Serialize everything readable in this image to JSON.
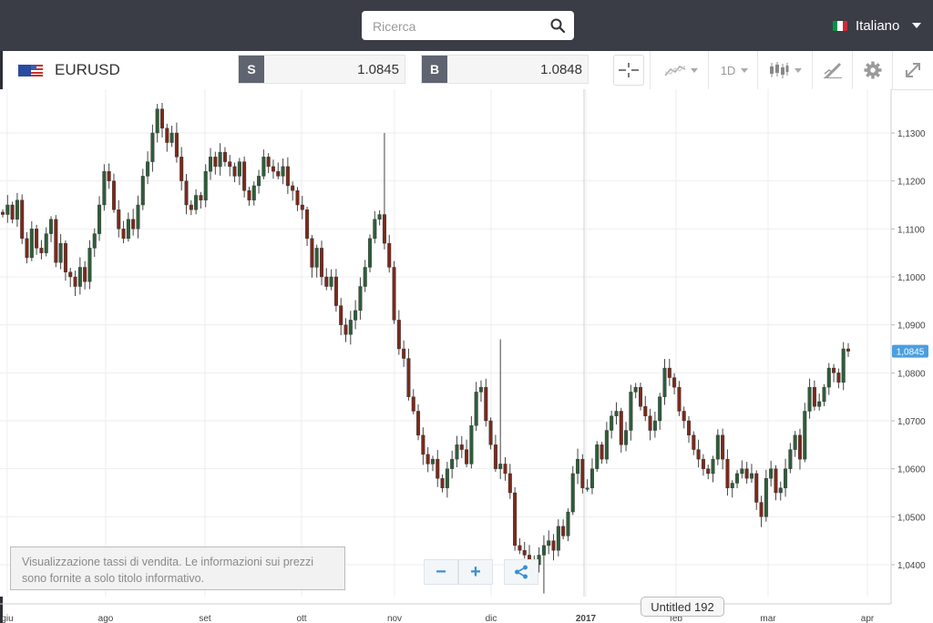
{
  "header": {
    "search_placeholder": "Ricerca",
    "language": "Italiano",
    "language_flag_colors": [
      "#009246",
      "#ffffff",
      "#ce2b37"
    ]
  },
  "toolbar": {
    "symbol": "EURUSD",
    "sell_label": "S",
    "sell_price": "1.0845",
    "buy_label": "B",
    "buy_price": "1.0848",
    "timeframe": "1D",
    "icons": [
      "crosshair-icon",
      "line-chart-type-icon",
      "candlestick-icon",
      "draw-tools-icon",
      "gear-icon",
      "fullscreen-icon"
    ]
  },
  "info_box": {
    "text": "Visualizzazione tassi di vendita. Le informazioni sui prezzi sono fornite a solo titolo informativo."
  },
  "controls": {
    "zoom_out": "−",
    "zoom_in": "+",
    "share_icon": "share-icon"
  },
  "tooltip": {
    "text": "Untitled 192"
  },
  "chart_data": {
    "type": "candlestick",
    "title": "",
    "ylim": [
      1.0325,
      1.1385
    ],
    "y_ticks": [
      "1,1300",
      "1,1200",
      "1,1100",
      "1,1000",
      "1,0900",
      "1,0800",
      "1,0700",
      "1,0600",
      "1,0500",
      "1,0400"
    ],
    "x_ticks": [
      "giu",
      "ago",
      "set",
      "ott",
      "nov",
      "dic",
      "2017",
      "feb",
      "mar",
      "apr"
    ],
    "current_price_label": "1,0845",
    "current_price": 1.0845,
    "up_color": "#2f5d3a",
    "down_color": "#7a2a1c",
    "grid": true,
    "closes": [
      1.113,
      1.115,
      1.112,
      1.116,
      1.108,
      1.104,
      1.11,
      1.106,
      1.105,
      1.109,
      1.112,
      1.103,
      1.107,
      1.101,
      1.1,
      1.098,
      1.102,
      1.099,
      1.106,
      1.109,
      1.115,
      1.122,
      1.12,
      1.114,
      1.11,
      1.108,
      1.112,
      1.11,
      1.115,
      1.121,
      1.124,
      1.13,
      1.135,
      1.131,
      1.128,
      1.13,
      1.125,
      1.12,
      1.115,
      1.114,
      1.117,
      1.116,
      1.122,
      1.125,
      1.123,
      1.126,
      1.124,
      1.123,
      1.121,
      1.124,
      1.118,
      1.116,
      1.119,
      1.121,
      1.125,
      1.123,
      1.122,
      1.121,
      1.123,
      1.119,
      1.118,
      1.115,
      1.114,
      1.108,
      1.102,
      1.106,
      1.1,
      1.098,
      1.1,
      1.094,
      1.09,
      1.088,
      1.091,
      1.093,
      1.098,
      1.102,
      1.108,
      1.112,
      1.113,
      1.107,
      1.102,
      1.091,
      1.085,
      1.083,
      1.075,
      1.072,
      1.067,
      1.063,
      1.061,
      1.062,
      1.058,
      1.056,
      1.06,
      1.062,
      1.065,
      1.064,
      1.061,
      1.069,
      1.076,
      1.077,
      1.07,
      1.065,
      1.06,
      1.061,
      1.059,
      1.055,
      1.044,
      1.043,
      1.042,
      1.041,
      1.04,
      1.042,
      1.044,
      1.045,
      1.043,
      1.048,
      1.046,
      1.051,
      1.059,
      1.062,
      1.056,
      1.056,
      1.06,
      1.065,
      1.062,
      1.068,
      1.071,
      1.072,
      1.065,
      1.068,
      1.076,
      1.077,
      1.073,
      1.071,
      1.068,
      1.07,
      1.075,
      1.081,
      1.079,
      1.077,
      1.072,
      1.07,
      1.067,
      1.064,
      1.062,
      1.06,
      1.059,
      1.062,
      1.067,
      1.062,
      1.056,
      1.057,
      1.059,
      1.06,
      1.058,
      1.059,
      1.053,
      1.05,
      1.058,
      1.06,
      1.055,
      1.056,
      1.06,
      1.064,
      1.067,
      1.062,
      1.072,
      1.077,
      1.073,
      1.074,
      1.077,
      1.081,
      1.08,
      1.078,
      1.085,
      1.0845
    ]
  }
}
